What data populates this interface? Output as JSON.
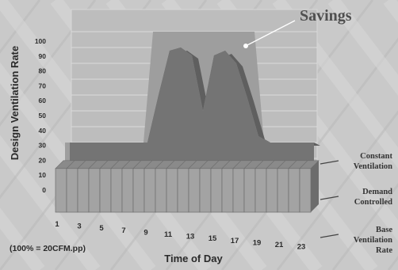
{
  "chart_data": {
    "type": "area",
    "title": "Savings",
    "ylabel": "Design Ventilation Rate",
    "xlabel": "Time of Day",
    "note": "(100% = 20CFM.pp)",
    "ylim": [
      0,
      100
    ],
    "yticks": [
      "0",
      "10",
      "20",
      "30",
      "40",
      "50",
      "60",
      "70",
      "80",
      "90",
      "100"
    ],
    "x": [
      1,
      2,
      3,
      4,
      5,
      6,
      7,
      8,
      9,
      10,
      11,
      12,
      13,
      14,
      15,
      16,
      17,
      18,
      19,
      20,
      21,
      22,
      23
    ],
    "xticks": [
      "1",
      "3",
      "5",
      "7",
      "9",
      "11",
      "13",
      "15",
      "17",
      "19",
      "21",
      "23"
    ],
    "series": [
      {
        "name": "Constant Ventilation",
        "values": [
          30,
          30,
          30,
          30,
          30,
          30,
          30,
          30,
          100,
          100,
          100,
          100,
          100,
          100,
          100,
          100,
          100,
          100,
          30,
          30,
          30,
          30,
          30
        ]
      },
      {
        "name": "Demand Controlled",
        "values": [
          30,
          30,
          30,
          30,
          30,
          30,
          30,
          30,
          60,
          88,
          90,
          85,
          50,
          85,
          88,
          80,
          58,
          34,
          30,
          30,
          30,
          30,
          30
        ]
      },
      {
        "name": "Base Ventilation Rate",
        "values": [
          30,
          30,
          30,
          30,
          30,
          30,
          30,
          30,
          30,
          30,
          30,
          30,
          30,
          30,
          30,
          30,
          30,
          30,
          30,
          30,
          30,
          30,
          30
        ]
      }
    ],
    "grid": true,
    "legend": "right"
  },
  "colors": {
    "background": "#c9c9c9",
    "wall": "#bdbdbd",
    "savings": "#9e9e9e",
    "demand": "#747474",
    "bar_front": "#a3a3a3",
    "bar_top": "#8a8a8a"
  }
}
